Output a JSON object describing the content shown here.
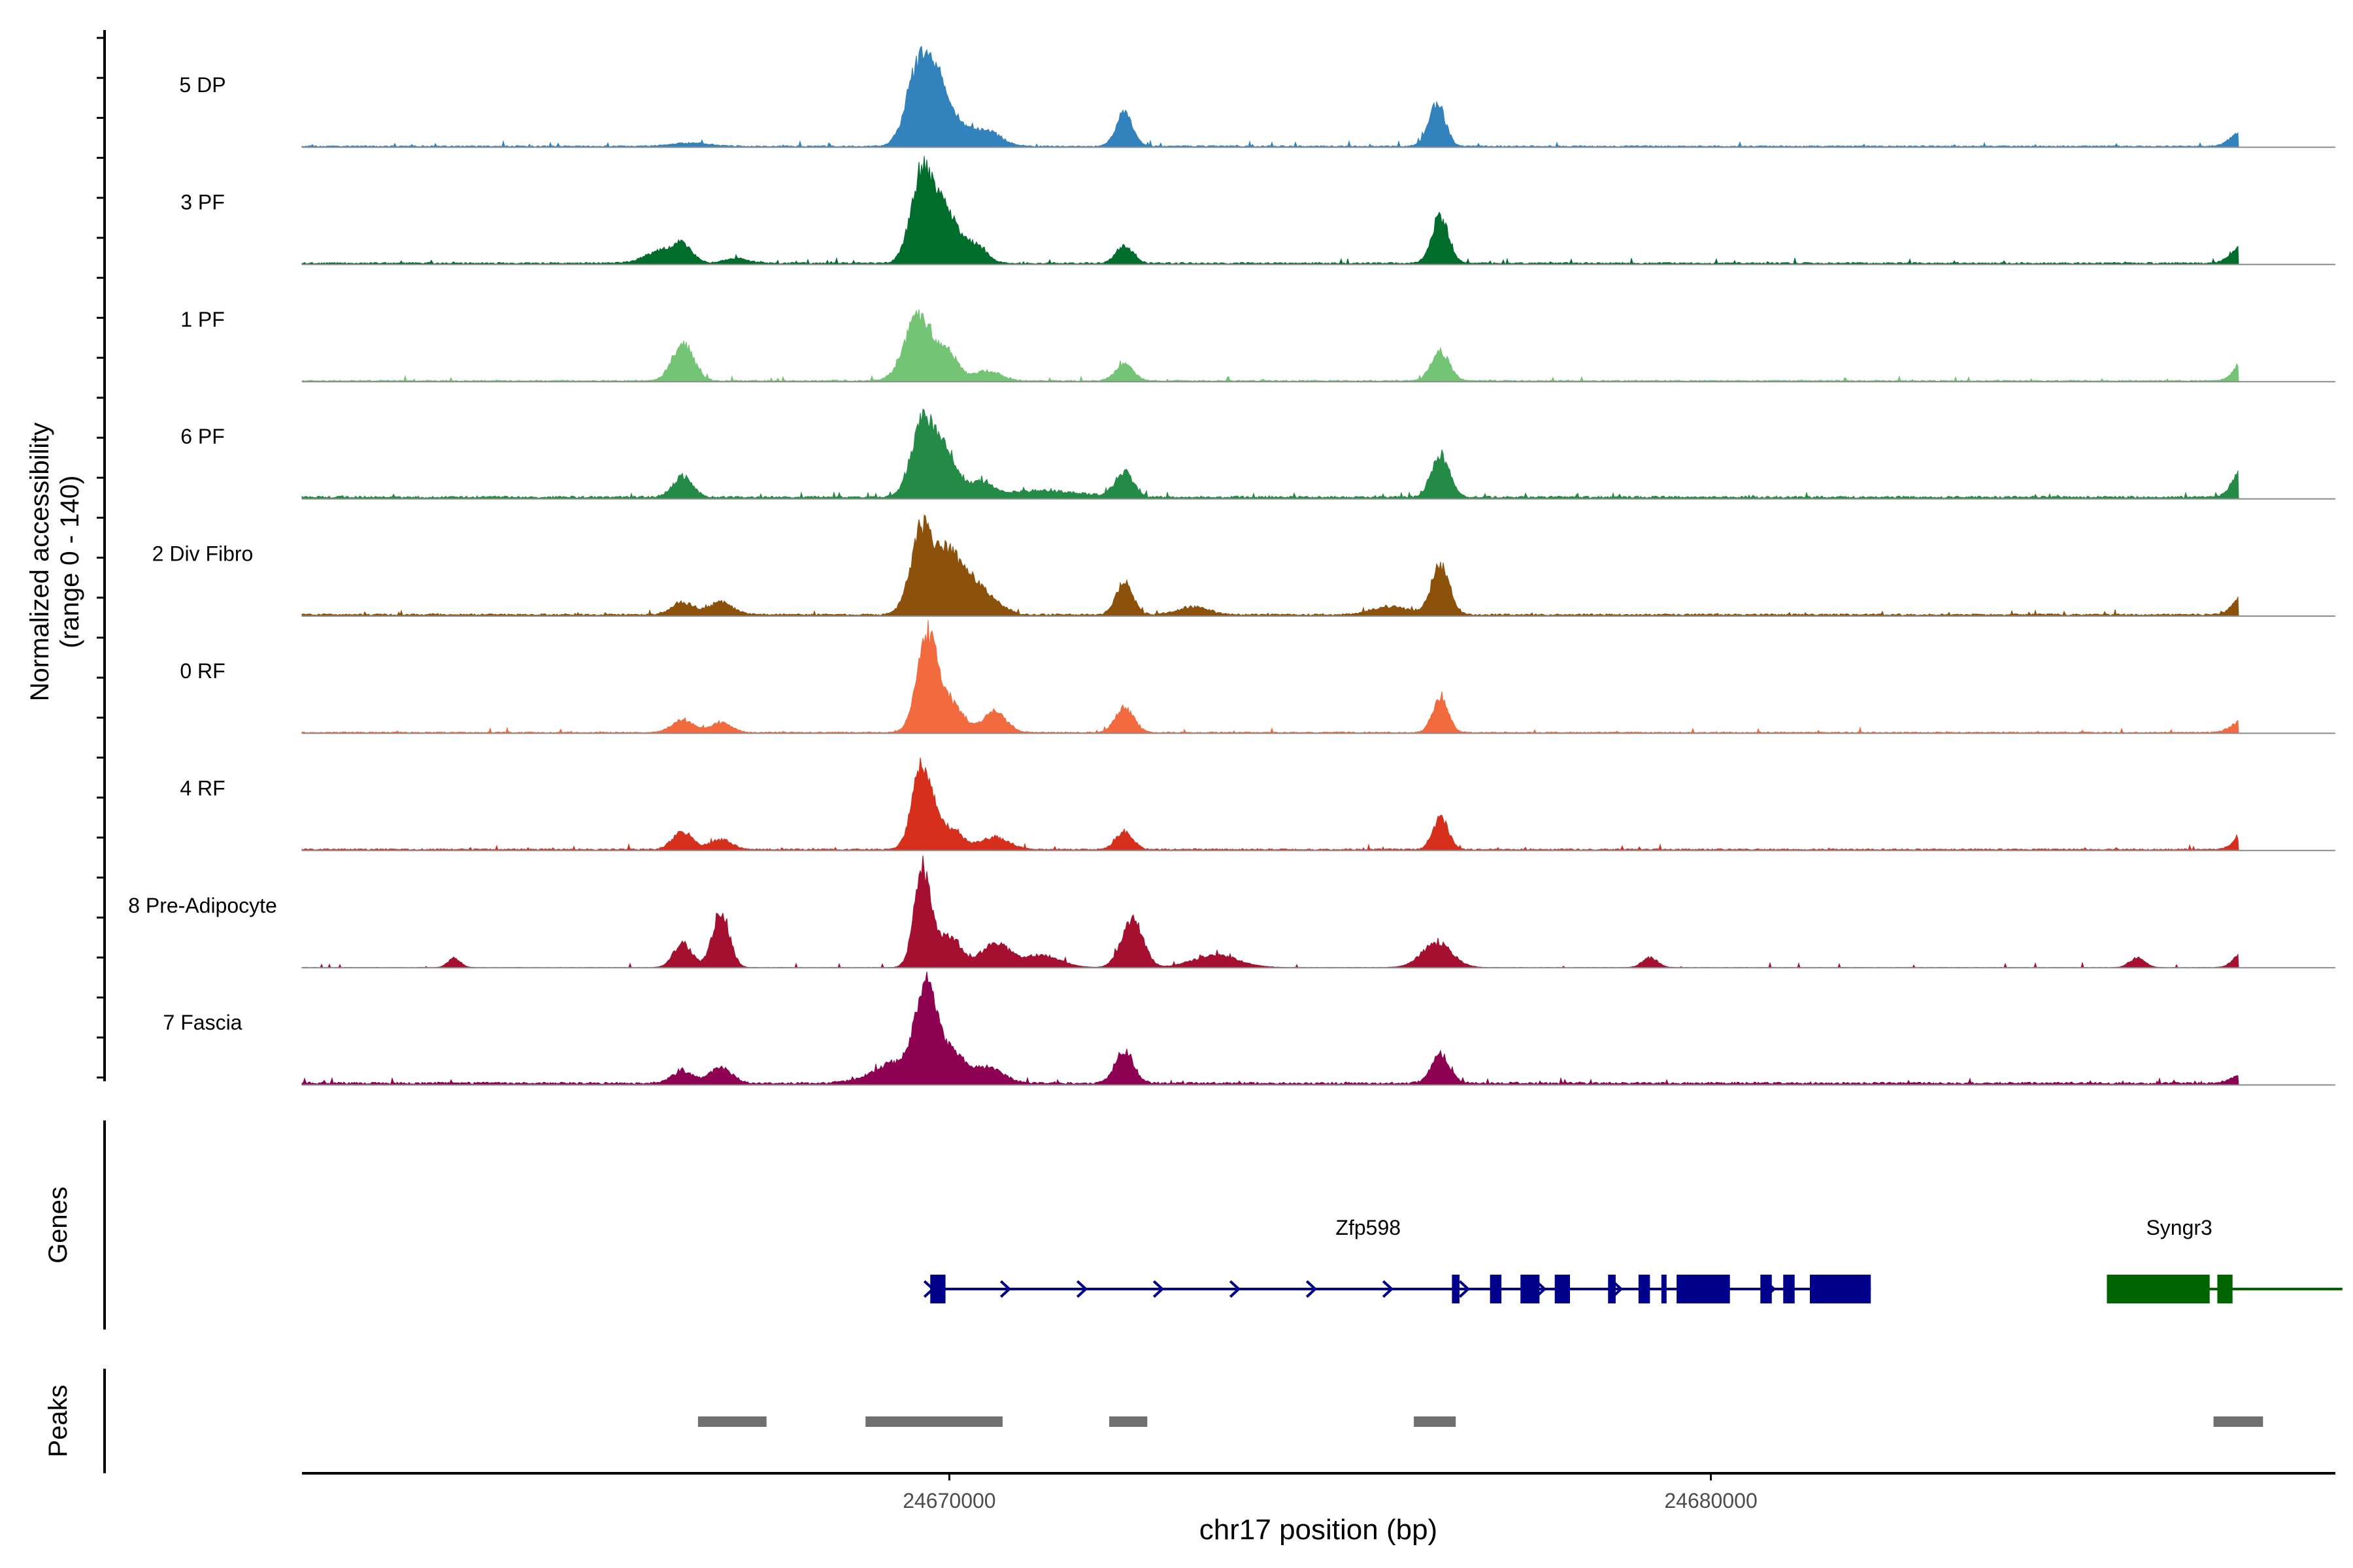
{
  "chart_data": {
    "type": "area",
    "title": "",
    "coverage_axis_label_line1": "Normalized accessibility",
    "coverage_axis_label_line2": "(range 0 - 140)",
    "genes_axis_label": "Genes",
    "peaks_axis_label": "Peaks",
    "xlabel": "chr17 position (bp)",
    "xlim": [
      24661500,
      24688200
    ],
    "xticks": [
      24670000,
      24680000
    ],
    "xtick_labels": [
      "24670000",
      "24680000"
    ],
    "ylim": [
      0,
      140
    ],
    "tracks": [
      {
        "name": "5 DP",
        "color": "#3182bd",
        "baseline": 1.3,
        "peaks": [
          [
            24666600,
            4,
            250
          ],
          [
            24669600,
            95,
            160
          ],
          [
            24669850,
            60,
            140
          ],
          [
            24670100,
            25,
            170
          ],
          [
            24670500,
            18,
            180
          ],
          [
            24672300,
            40,
            110
          ],
          [
            24676400,
            53,
            110
          ],
          [
            24687000,
            20,
            150
          ]
        ]
      },
      {
        "name": "3 PF",
        "color": "#006d2c",
        "baseline": 1.6,
        "peaks": [
          [
            24666200,
            15,
            200
          ],
          [
            24666500,
            20,
            130
          ],
          [
            24667200,
            6,
            160
          ],
          [
            24669650,
            110,
            150
          ],
          [
            24669950,
            60,
            140
          ],
          [
            24670300,
            25,
            160
          ],
          [
            24672300,
            22,
            110
          ],
          [
            24676450,
            58,
            110
          ],
          [
            24687000,
            22,
            150
          ]
        ]
      },
      {
        "name": "1 PF",
        "color": "#74c476",
        "baseline": 1.2,
        "peaks": [
          [
            24666500,
            45,
            140
          ],
          [
            24669600,
            82,
            180
          ],
          [
            24670000,
            30,
            130
          ],
          [
            24670500,
            12,
            170
          ],
          [
            24672300,
            20,
            120
          ],
          [
            24676450,
            35,
            120
          ],
          [
            24687000,
            25,
            120
          ]
        ]
      },
      {
        "name": "6 PF",
        "color": "#238b45",
        "baseline": 2.2,
        "peaks": [
          [
            24666500,
            25,
            130
          ],
          [
            24669650,
            90,
            150
          ],
          [
            24669950,
            55,
            140
          ],
          [
            24670400,
            18,
            160
          ],
          [
            24671200,
            8,
            500
          ],
          [
            24672300,
            30,
            120
          ],
          [
            24676450,
            50,
            120
          ],
          [
            24687000,
            35,
            130
          ]
        ]
      },
      {
        "name": "2 Div Fibro",
        "color": "#8c510a",
        "baseline": 1.8,
        "peaks": [
          [
            24666500,
            15,
            140
          ],
          [
            24667000,
            15,
            160
          ],
          [
            24669650,
            110,
            150
          ],
          [
            24670000,
            70,
            140
          ],
          [
            24670300,
            40,
            160
          ],
          [
            24670600,
            12,
            160
          ],
          [
            24672300,
            40,
            110
          ],
          [
            24673200,
            10,
            200
          ],
          [
            24676450,
            60,
            120
          ],
          [
            24675800,
            10,
            250
          ],
          [
            24687000,
            25,
            130
          ]
        ]
      },
      {
        "name": "0 RF",
        "color": "#f16b3f",
        "baseline": 1.1,
        "peaks": [
          [
            24666500,
            15,
            140
          ],
          [
            24667000,
            12,
            140
          ],
          [
            24669700,
            115,
            130
          ],
          [
            24670000,
            35,
            180
          ],
          [
            24670600,
            25,
            150
          ],
          [
            24672300,
            30,
            120
          ],
          [
            24676450,
            45,
            100
          ],
          [
            24687000,
            15,
            150
          ]
        ]
      },
      {
        "name": "4 RF",
        "color": "#d6301d",
        "baseline": 1.4,
        "peaks": [
          [
            24666500,
            22,
            130
          ],
          [
            24667000,
            12,
            140
          ],
          [
            24669650,
            105,
            130
          ],
          [
            24670000,
            25,
            170
          ],
          [
            24670600,
            15,
            180
          ],
          [
            24672300,
            22,
            110
          ],
          [
            24676450,
            40,
            100
          ],
          [
            24687000,
            18,
            120
          ]
        ]
      },
      {
        "name": "8 Pre-Adipocyte",
        "color": "#a50f30",
        "baseline": 0.3,
        "peaks": [
          [
            24663500,
            12,
            80
          ],
          [
            24666500,
            30,
            120
          ],
          [
            24667000,
            70,
            110
          ],
          [
            24669650,
            120,
            110
          ],
          [
            24670000,
            40,
            150
          ],
          [
            24670600,
            30,
            180
          ],
          [
            24671200,
            15,
            250
          ],
          [
            24672400,
            60,
            140
          ],
          [
            24673500,
            15,
            300
          ],
          [
            24676400,
            30,
            200
          ],
          [
            24679200,
            12,
            100
          ],
          [
            24685600,
            12,
            100
          ],
          [
            24687000,
            20,
            120
          ]
        ]
      },
      {
        "name": "7 Fascia",
        "color": "#8e0152",
        "baseline": 2.2,
        "peaks": [
          [
            24666500,
            15,
            140
          ],
          [
            24667000,
            20,
            140
          ],
          [
            24669700,
            115,
            140
          ],
          [
            24670050,
            35,
            150
          ],
          [
            24669300,
            25,
            300
          ],
          [
            24670500,
            20,
            200
          ],
          [
            24672300,
            40,
            120
          ],
          [
            24676450,
            35,
            120
          ],
          [
            24687000,
            12,
            150
          ]
        ]
      }
    ],
    "genes": [
      {
        "name": "Zfp598",
        "color": "#00008b",
        "strand": "+",
        "start": 24669750,
        "end": 24682100,
        "exons": [
          [
            24669750,
            24669950
          ],
          [
            24676600,
            24676700
          ],
          [
            24677100,
            24677250
          ],
          [
            24677500,
            24677750
          ],
          [
            24677950,
            24678150
          ],
          [
            24678650,
            24678750
          ],
          [
            24679050,
            24679200
          ],
          [
            24679350,
            24679400
          ],
          [
            24679550,
            24680250
          ],
          [
            24680650,
            24680800
          ],
          [
            24680950,
            24681100
          ],
          [
            24681300,
            24682100
          ]
        ]
      },
      {
        "name": "Syngr3",
        "color": "#006400",
        "strand": "-",
        "start": 24685200,
        "end": 24687950,
        "exons": [
          [
            24685200,
            24686550
          ],
          [
            24686650,
            24686850
          ]
        ]
      }
    ],
    "peaks": [
      [
        24666700,
        24667600
      ],
      [
        24668900,
        24670700
      ],
      [
        24672100,
        24672600
      ],
      [
        24676100,
        24676650
      ],
      [
        24686600,
        24687250
      ]
    ]
  }
}
